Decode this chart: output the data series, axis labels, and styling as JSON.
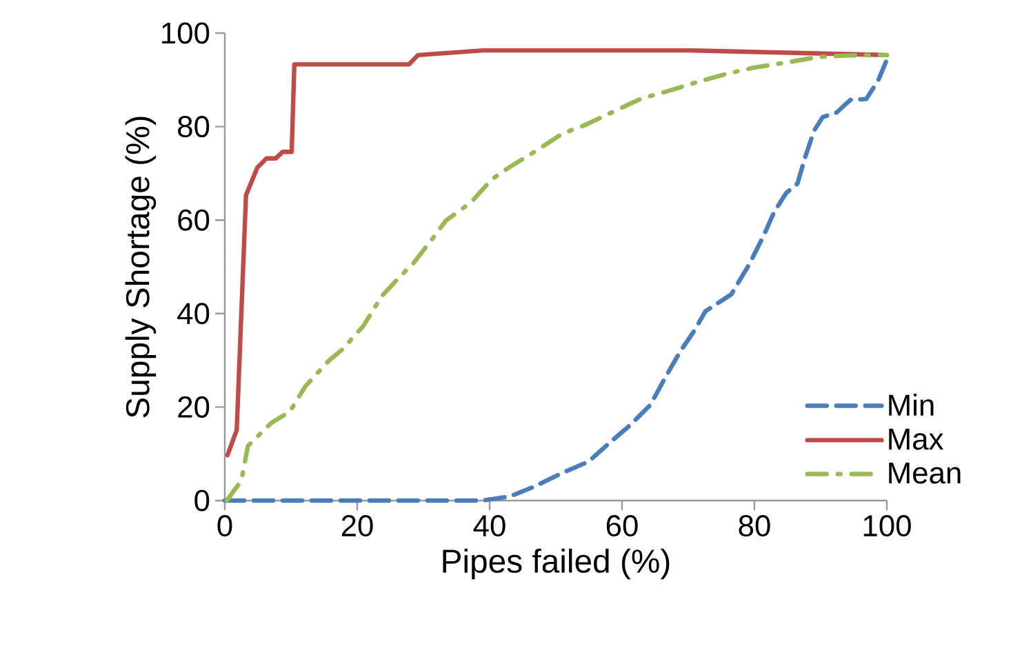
{
  "chart_data": {
    "type": "line",
    "xlabel": "Pipes failed (%)",
    "ylabel": "Supply Shortage (%)",
    "xlim": [
      0,
      100
    ],
    "ylim": [
      0,
      100
    ],
    "xticks": [
      0,
      20,
      40,
      60,
      80,
      100
    ],
    "yticks": [
      0,
      20,
      40,
      60,
      80,
      100
    ],
    "grid": false,
    "legend": "bottom right",
    "series": [
      {
        "name": "Min",
        "color": "#4a7ebb",
        "line_style": "dashed",
        "x": [
          0,
          10,
          20,
          30,
          39,
          43.1,
          46.6,
          50.8,
          54.9,
          58.4,
          61.2,
          64.3,
          66.4,
          68.8,
          70.9,
          72.6,
          76.5,
          79.2,
          81.3,
          83,
          84.8,
          86.5,
          87.6,
          89,
          90.3,
          92.4,
          94.5,
          96.9,
          98.7,
          100
        ],
        "values": [
          0,
          0,
          0,
          0,
          0,
          0.9,
          2.9,
          5.8,
          8.3,
          12.7,
          16.1,
          20.5,
          26,
          31.9,
          36.3,
          40.5,
          44.1,
          50.5,
          56.4,
          61.8,
          65.8,
          67.8,
          73.2,
          79.1,
          82,
          83,
          85.7,
          85.9,
          89.9,
          94.3
        ]
      },
      {
        "name": "Max",
        "color": "#be4b48",
        "line_style": "solid",
        "x": [
          0.4,
          1.8,
          3.2,
          4.9,
          6.3,
          7.7,
          8.75,
          10.1,
          10.5,
          27.8,
          29.2,
          39,
          70,
          100
        ],
        "values": [
          9.7,
          15.1,
          65.3,
          71.2,
          73.2,
          73.2,
          74.6,
          74.6,
          93.3,
          93.3,
          95.3,
          96.3,
          96.3,
          95.3
        ]
      },
      {
        "name": "Mean",
        "color": "#98b954",
        "line_style": "dashdot",
        "x": [
          0.3,
          2.5,
          3.5,
          7,
          9.8,
          12.2,
          15.7,
          17.8,
          20.9,
          23.7,
          26.1,
          28.5,
          31.3,
          33.4,
          37.2,
          40.3,
          43.1,
          47,
          51.1,
          54.2,
          58.4,
          62.9,
          66.7,
          71.3,
          76.1,
          79.9,
          84.8,
          89.7,
          93.8,
          98.7,
          100
        ],
        "values": [
          0,
          4.3,
          11.7,
          16.6,
          19,
          24.5,
          29.9,
          32.4,
          37.3,
          43.7,
          47.4,
          50.8,
          55.9,
          59.9,
          63.8,
          68.7,
          71.4,
          74.8,
          78.6,
          80.2,
          83,
          86,
          87.5,
          89.5,
          91.4,
          92.6,
          93.7,
          94.9,
          95.2,
          95.3,
          95.3
        ]
      }
    ]
  }
}
